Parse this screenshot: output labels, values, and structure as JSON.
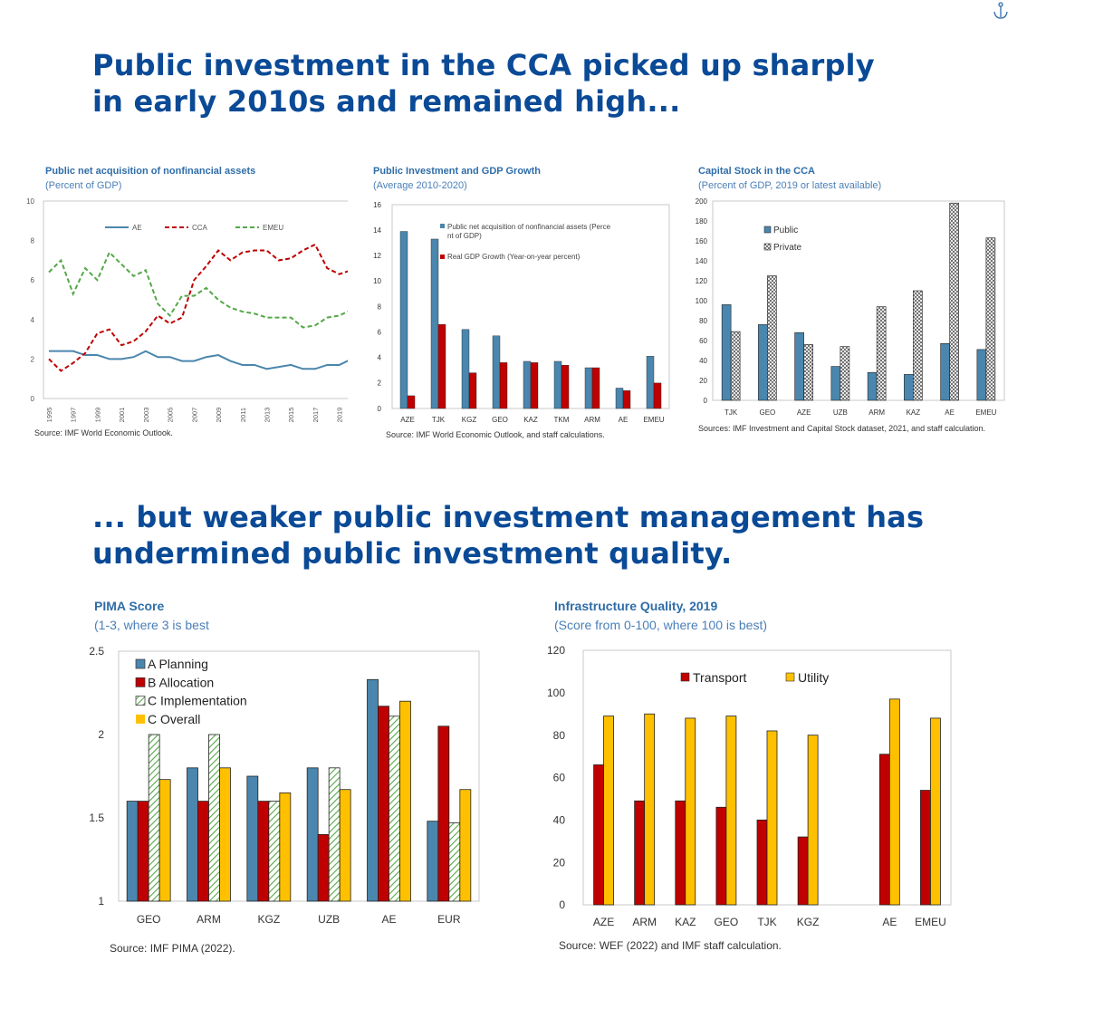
{
  "headline1": "Public investment in the CCA picked up sharply in early 2010s and remained high...",
  "headline2": "... but weaker public investment management has undermined public investment quality.",
  "colors": {
    "headline": "#0a4a96",
    "title": "#2f6da8",
    "blue": "#4a86ad",
    "red": "#c00000",
    "green": "#54a847",
    "yellow": "#ffc000"
  },
  "charts": [
    {
      "title": "Public net acquisition of nonfinancial assets",
      "subtitle": "(Percent of GDP)",
      "source": "Source: IMF World Economic Outlook.",
      "chart_data": {
        "type": "line",
        "x": [
          1995,
          1996,
          1997,
          1998,
          1999,
          2000,
          2001,
          2002,
          2003,
          2004,
          2005,
          2006,
          2007,
          2008,
          2009,
          2010,
          2011,
          2012,
          2013,
          2014,
          2015,
          2016,
          2017,
          2018,
          2019,
          2020
        ],
        "xticks": [
          "1995",
          "1997",
          "1999",
          "2001",
          "2003",
          "2005",
          "2007",
          "2009",
          "2011",
          "2013",
          "2015",
          "2017",
          "2019"
        ],
        "ylim": [
          0,
          10
        ],
        "yticks": [
          "0",
          "2",
          "4",
          "6",
          "8",
          "10"
        ],
        "legend_position": "top",
        "series": [
          {
            "name": "AE",
            "color": "#4a86ad",
            "dash": "solid",
            "values": [
              2.4,
              2.4,
              2.4,
              2.2,
              2.2,
              2.0,
              2.0,
              2.1,
              2.4,
              2.1,
              2.1,
              1.9,
              1.9,
              2.1,
              2.2,
              1.9,
              1.7,
              1.7,
              1.5,
              1.6,
              1.7,
              1.5,
              1.5,
              1.7,
              1.7,
              2.0
            ]
          },
          {
            "name": "CCA",
            "color": "#c00000",
            "dash": "dashed",
            "values": [
              2.0,
              1.4,
              1.8,
              2.3,
              3.3,
              3.5,
              2.7,
              2.9,
              3.4,
              4.2,
              3.8,
              4.1,
              6.0,
              6.7,
              7.5,
              7.0,
              7.4,
              7.5,
              7.5,
              7.0,
              7.1,
              7.5,
              7.8,
              6.6,
              6.3,
              6.5
            ]
          },
          {
            "name": "EMEU",
            "color": "#54a847",
            "dash": "dashed",
            "values": [
              6.4,
              7.0,
              5.3,
              6.6,
              6.0,
              7.4,
              6.8,
              6.2,
              6.5,
              4.8,
              4.2,
              5.2,
              5.2,
              5.6,
              5.0,
              4.6,
              4.4,
              4.3,
              4.1,
              4.1,
              4.1,
              3.6,
              3.7,
              4.1,
              4.2,
              4.5
            ]
          }
        ]
      }
    },
    {
      "title": "Public Investment and GDP Growth",
      "subtitle": "(Average 2010-2020)",
      "source": "Source: IMF World Economic Outlook, and staff calculations.",
      "chart_data": {
        "type": "bar",
        "categories": [
          "AZE",
          "TJK",
          "KGZ",
          "GEO",
          "KAZ",
          "TKM",
          "ARM",
          "AE",
          "EMEU"
        ],
        "ylim": [
          0,
          16
        ],
        "yticks": [
          "0",
          "2",
          "4",
          "6",
          "8",
          "10",
          "12",
          "14",
          "16"
        ],
        "legend_position": "top-right",
        "series": [
          {
            "name": "Public net acquisition of nonfinancial assets (Percent of GDP)",
            "color": "#4a86ad",
            "values": [
              13.9,
              13.3,
              6.2,
              5.7,
              3.7,
              3.7,
              3.2,
              1.6,
              4.1
            ]
          },
          {
            "name": "Real GDP Growth (Year-on-year percent)",
            "color": "#c00000",
            "values": [
              1.0,
              6.6,
              2.8,
              3.6,
              3.6,
              3.4,
              3.2,
              1.4,
              2.0
            ]
          }
        ]
      }
    },
    {
      "title": "Capital Stock in the CCA",
      "subtitle": "(Percent of GDP, 2019 or latest available)",
      "source": "Sources: IMF Investment and Capital Stock dataset, 2021, and staff calculation.",
      "chart_data": {
        "type": "bar",
        "categories": [
          "TJK",
          "GEO",
          "AZE",
          "UZB",
          "ARM",
          "KAZ",
          "AE",
          "EMEU"
        ],
        "ylim": [
          0,
          200
        ],
        "yticks": [
          "0",
          "20",
          "40",
          "60",
          "80",
          "100",
          "120",
          "140",
          "160",
          "180",
          "200"
        ],
        "legend_position": "top-left",
        "series": [
          {
            "name": "Public",
            "color": "#4a86ad",
            "values": [
              96,
              76,
              68,
              34,
              28,
              26,
              57,
              51
            ]
          },
          {
            "name": "Private",
            "color": "hatched",
            "values": [
              69,
              125,
              56,
              54,
              94,
              110,
              198,
              163
            ]
          }
        ]
      }
    },
    {
      "title": "PIMA Score",
      "subtitle": "(1-3, where 3 is best",
      "source": "Source: IMF PIMA (2022).",
      "chart_data": {
        "type": "bar",
        "categories": [
          "GEO",
          "ARM",
          "KGZ",
          "UZB",
          "AE",
          "EUR"
        ],
        "ylim": [
          1,
          2.5
        ],
        "yticks": [
          "1",
          "1.5",
          "2",
          "2.5"
        ],
        "legend_position": "top-left",
        "series": [
          {
            "name": "A Planning",
            "color": "#4a86ad",
            "values": [
              1.6,
              1.8,
              1.75,
              1.8,
              2.33,
              1.48
            ]
          },
          {
            "name": "B Allocation",
            "color": "#c00000",
            "values": [
              1.6,
              1.6,
              1.6,
              1.4,
              2.17,
              2.05
            ]
          },
          {
            "name": "C Implementation",
            "color": "hatched-green",
            "values": [
              2.0,
              2.0,
              1.6,
              1.8,
              2.11,
              1.47
            ]
          },
          {
            "name": "C Overall",
            "color": "#ffc000",
            "values": [
              1.73,
              1.8,
              1.65,
              1.67,
              2.2,
              1.67
            ]
          }
        ]
      }
    },
    {
      "title": "Infrastructure Quality, 2019",
      "subtitle": "(Score from 0-100, where 100 is best)",
      "source": "Source: WEF (2022) and IMF staff calculation.",
      "chart_data": {
        "type": "bar",
        "categories": [
          "AZE",
          "ARM",
          "KAZ",
          "GEO",
          "TJK",
          "KGZ",
          "",
          "AE",
          "EMEU"
        ],
        "ylim": [
          0,
          120
        ],
        "yticks": [
          "0",
          "20",
          "40",
          "60",
          "80",
          "100",
          "120"
        ],
        "legend_position": "top",
        "series": [
          {
            "name": "Transport",
            "color": "#c00000",
            "values": [
              66,
              49,
              49,
              46,
              40,
              32,
              null,
              71,
              54
            ]
          },
          {
            "name": "Utility",
            "color": "#ffc000",
            "values": [
              89,
              90,
              88,
              89,
              82,
              80,
              null,
              97,
              88
            ]
          }
        ]
      }
    }
  ]
}
